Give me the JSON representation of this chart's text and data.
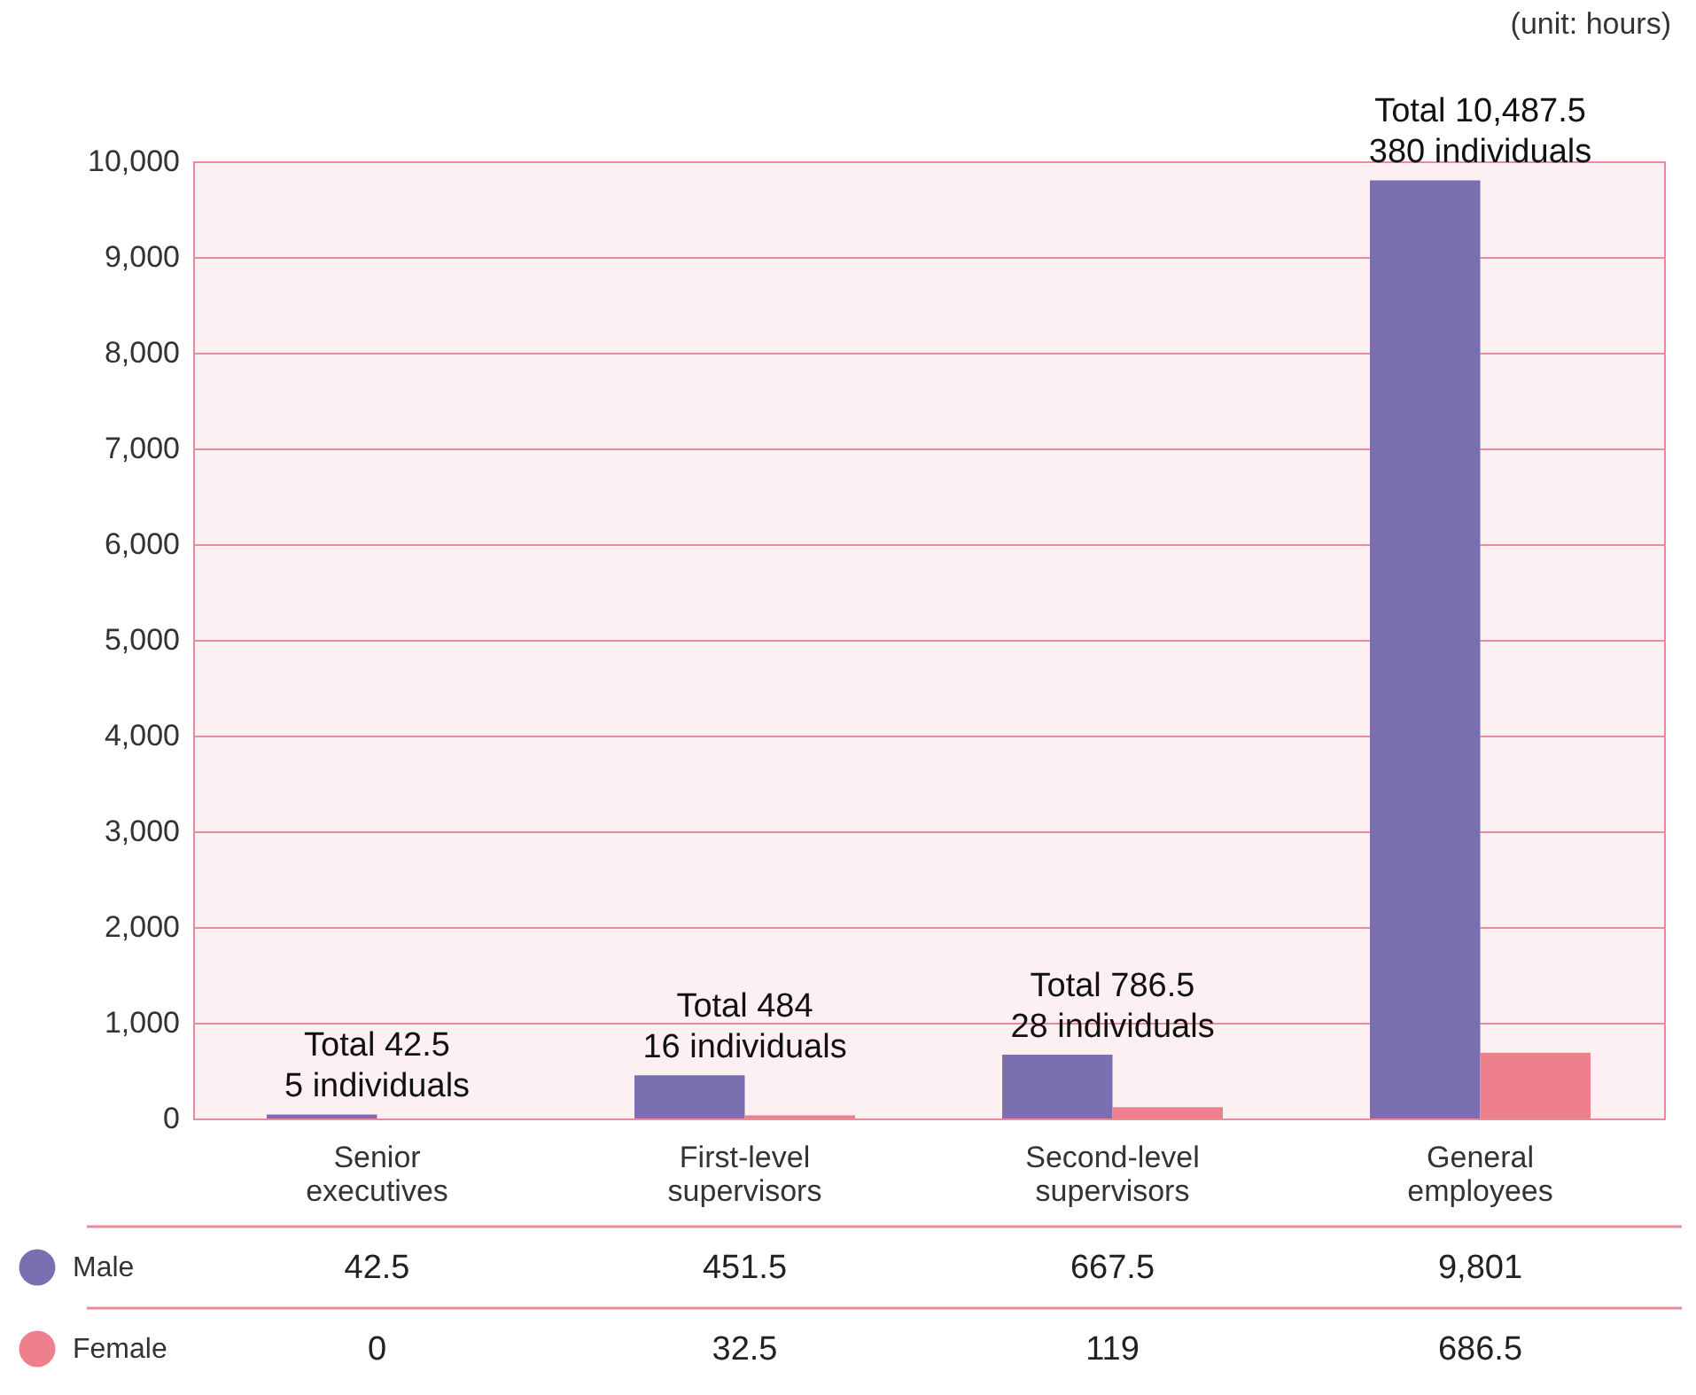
{
  "chart_data": {
    "type": "bar",
    "categories": [
      "Senior executives",
      "First-level supervisors",
      "Second-level supervisors",
      "General employees"
    ],
    "series": [
      {
        "name": "Male",
        "color": "#7a70b1",
        "values": [
          42.5,
          451.5,
          667.5,
          9801
        ],
        "value_labels": [
          "42.5",
          "451.5",
          "667.5",
          "9,801"
        ]
      },
      {
        "name": "Female",
        "color": "#ee7f8c",
        "values": [
          0,
          32.5,
          119,
          686.5
        ],
        "value_labels": [
          "0",
          "32.5",
          "119",
          "686.5"
        ]
      }
    ],
    "legend": "bottom left",
    "ylim": [
      0,
      10000
    ],
    "yticks": [
      0,
      {
        "value": 1000,
        "label": "1,000"
      },
      {
        "value": 2000,
        "label": "2,000"
      },
      {
        "value": 3000,
        "label": "3,000"
      },
      {
        "value": 4000,
        "label": "4,000"
      },
      {
        "value": 5000,
        "label": "5,000"
      },
      {
        "value": 6000,
        "label": "6,000"
      },
      {
        "value": 7000,
        "label": "7,000"
      },
      {
        "value": 8000,
        "label": "8,000"
      },
      {
        "value": 9000,
        "label": "9,000"
      },
      {
        "value": 10000,
        "label": "10,000"
      }
    ],
    "grid": "y",
    "annotations": [
      "(unit: hours)",
      {
        "text": "Total 42.5\n5 individuals",
        "x": "Senior executives",
        "y": 42.5
      },
      {
        "text": "Total 484\n16 individuals",
        "x": "First-level supervisors",
        "y": 451.5
      },
      {
        "text": "Total 786.5\n28 individuals",
        "x": "Second-level supervisors",
        "y": 667.5
      },
      {
        "text": "Total 10,487.5\n380 individuals",
        "x": "General employees",
        "y": 9801
      }
    ]
  }
}
